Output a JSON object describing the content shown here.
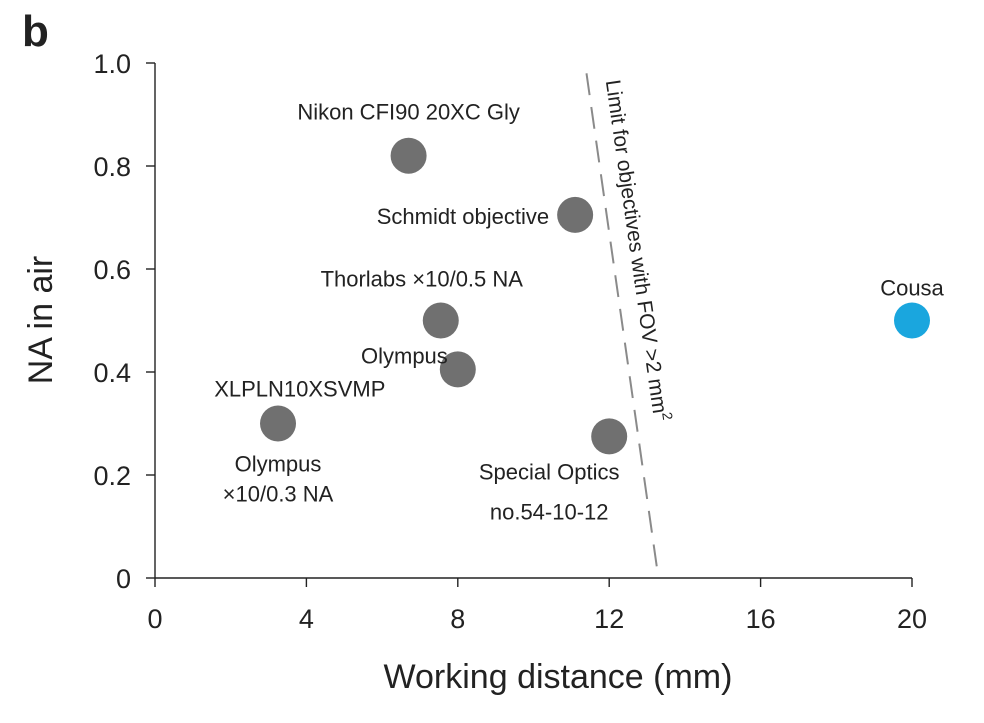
{
  "panel_label": "b",
  "chart_data": {
    "type": "scatter",
    "title": "",
    "xlabel": "Working distance (mm)",
    "ylabel": "NA in air",
    "xlim": [
      0,
      20
    ],
    "ylim": [
      0,
      1.0
    ],
    "x_ticks": [
      0,
      4,
      8,
      12,
      16,
      20
    ],
    "x_tick_labels": [
      "0",
      "4",
      "8",
      "12",
      "16",
      "20"
    ],
    "y_ticks": [
      0,
      0.2,
      0.4,
      0.6,
      0.8,
      1.0
    ],
    "y_tick_labels": [
      "0",
      "0.2",
      "0.4",
      "0.6",
      "0.8",
      "1.0"
    ],
    "grid": false,
    "points": [
      {
        "label_lines": [
          "Nikon CFI90 20XC Gly"
        ],
        "x": 6.7,
        "y": 0.82,
        "color": "#707070"
      },
      {
        "label_lines": [
          "Schmidt objective"
        ],
        "x": 11.1,
        "y": 0.705,
        "color": "#707070"
      },
      {
        "label_lines": [
          "Thorlabs ×10/0.5 NA"
        ],
        "x": 7.55,
        "y": 0.5,
        "color": "#707070"
      },
      {
        "label_lines": [
          "Olympus",
          "XLPLN10XSVMP"
        ],
        "x": 8.0,
        "y": 0.405,
        "color": "#707070"
      },
      {
        "label_lines": [
          "Olympus",
          "×10/0.3 NA"
        ],
        "x": 3.25,
        "y": 0.3,
        "color": "#707070"
      },
      {
        "label_lines": [
          "Special Optics",
          "no.54-10-12"
        ],
        "x": 12.0,
        "y": 0.275,
        "color": "#707070"
      },
      {
        "label_lines": [
          "Cousa"
        ],
        "x": 20.0,
        "y": 0.5,
        "color": "#1AA6DE"
      }
    ],
    "limit_line": {
      "label": "Limit for objectives with FOV >2 mm",
      "label_superscript": "2",
      "x_start": 11.4,
      "y_start": 0.98,
      "x_end": 13.3,
      "y_end": 0.0,
      "color": "#8a8a8a",
      "style": "dashed"
    }
  }
}
